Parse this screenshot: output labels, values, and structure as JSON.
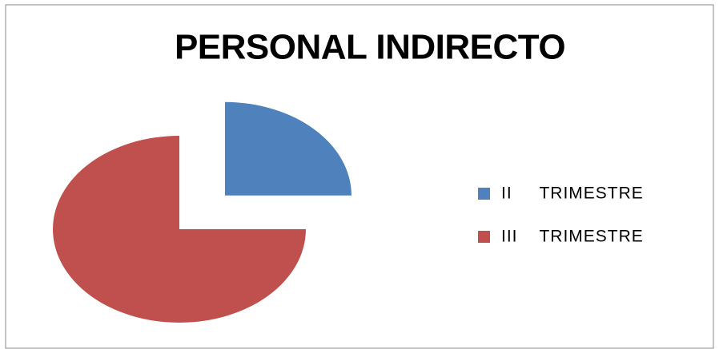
{
  "chart_data": {
    "type": "pie",
    "title": "PERSONAL INDIRECTO",
    "categories": [
      "II     TRIMESTRE",
      "III    TRIMESTRE"
    ],
    "values": [
      25,
      75
    ],
    "colors": [
      "#4f81bd",
      "#c0504d"
    ],
    "legend": "right"
  }
}
